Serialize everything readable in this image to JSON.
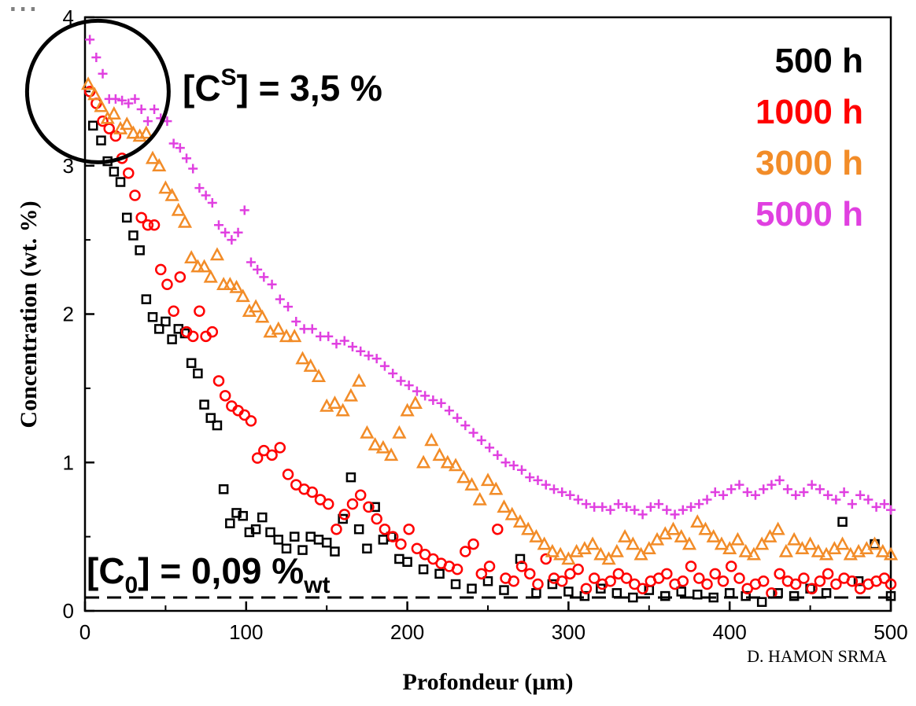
{
  "top_title": "...",
  "credit": "D. HAMON SRMA",
  "annotations": {
    "cs_label": "[C",
    "cs_sup": "S",
    "cs_rest": "] = 3,5 %",
    "c0_label": "[C",
    "c0_sub": "0",
    "c0_mid": "] = 0,09 %",
    "c0_sub2": "wt"
  },
  "colors": {
    "s500": "#000000",
    "s1000": "#ff0000",
    "s3000": "#f28c28",
    "s5000": "#e040e0"
  },
  "chart_data": {
    "type": "scatter",
    "xlabel": "Profondeur (µm)",
    "ylabel": "Concentration (wt. %)",
    "xlim": [
      0,
      500
    ],
    "ylim": [
      0,
      4
    ],
    "xticks": [
      0,
      100,
      200,
      300,
      400,
      500
    ],
    "yticks": [
      0,
      1,
      2,
      3,
      4
    ],
    "grid": false,
    "legend_position": "top-right",
    "reference_line": {
      "y": 0.09,
      "style": "dashed"
    },
    "circle_annotation": {
      "x": 8,
      "y": 3.5
    },
    "series": [
      {
        "name": "500 h",
        "marker": "square",
        "color": "#000000",
        "x": [
          5,
          10,
          14,
          18,
          22,
          26,
          30,
          34,
          38,
          42,
          46,
          50,
          54,
          58,
          62,
          66,
          70,
          74,
          78,
          82,
          86,
          90,
          94,
          98,
          102,
          106,
          110,
          115,
          120,
          125,
          130,
          135,
          140,
          145,
          150,
          155,
          160,
          165,
          170,
          175,
          180,
          185,
          190,
          195,
          200,
          210,
          220,
          230,
          240,
          250,
          260,
          270,
          280,
          290,
          300,
          310,
          320,
          330,
          340,
          350,
          360,
          370,
          380,
          390,
          400,
          410,
          420,
          430,
          440,
          450,
          460,
          470,
          480,
          490,
          500
        ],
        "y": [
          3.27,
          3.17,
          3.03,
          2.96,
          2.89,
          2.65,
          2.53,
          2.43,
          2.1,
          1.98,
          1.9,
          1.95,
          1.83,
          1.9,
          1.87,
          1.67,
          1.6,
          1.39,
          1.3,
          1.25,
          0.82,
          0.59,
          0.66,
          0.64,
          0.53,
          0.55,
          0.63,
          0.53,
          0.48,
          0.42,
          0.5,
          0.41,
          0.5,
          0.48,
          0.46,
          0.4,
          0.62,
          0.9,
          0.55,
          0.42,
          0.7,
          0.48,
          0.5,
          0.35,
          0.33,
          0.28,
          0.25,
          0.18,
          0.15,
          0.2,
          0.14,
          0.35,
          0.12,
          0.18,
          0.13,
          0.1,
          0.15,
          0.12,
          0.09,
          0.14,
          0.1,
          0.13,
          0.11,
          0.09,
          0.12,
          0.1,
          0.06,
          0.12,
          0.1,
          0.15,
          0.12,
          0.6,
          0.2,
          0.45,
          0.1
        ]
      },
      {
        "name": "1000 h",
        "marker": "circle",
        "color": "#ff0000",
        "x": [
          3,
          7,
          11,
          15,
          19,
          23,
          27,
          31,
          35,
          39,
          43,
          47,
          51,
          55,
          59,
          63,
          67,
          71,
          75,
          79,
          83,
          87,
          91,
          95,
          99,
          103,
          107,
          111,
          116,
          121,
          126,
          131,
          136,
          141,
          146,
          151,
          156,
          161,
          166,
          171,
          176,
          181,
          186,
          191,
          196,
          201,
          206,
          211,
          216,
          221,
          226,
          231,
          236,
          241,
          246,
          251,
          256,
          261,
          266,
          271,
          276,
          281,
          286,
          291,
          296,
          301,
          306,
          311,
          316,
          321,
          326,
          331,
          336,
          341,
          346,
          351,
          356,
          361,
          366,
          371,
          376,
          381,
          386,
          391,
          396,
          401,
          406,
          411,
          416,
          421,
          426,
          431,
          436,
          441,
          446,
          451,
          456,
          461,
          466,
          471,
          476,
          481,
          486,
          491,
          496,
          500
        ],
        "y": [
          3.5,
          3.42,
          3.3,
          3.25,
          3.2,
          3.05,
          2.95,
          2.8,
          2.65,
          2.6,
          2.6,
          2.3,
          2.2,
          2.02,
          2.25,
          1.88,
          1.85,
          2.02,
          1.85,
          1.88,
          1.55,
          1.45,
          1.38,
          1.35,
          1.32,
          1.28,
          1.03,
          1.08,
          1.05,
          1.1,
          0.92,
          0.85,
          0.82,
          0.8,
          0.75,
          0.72,
          0.55,
          0.65,
          0.72,
          0.78,
          0.7,
          0.62,
          0.55,
          0.5,
          0.45,
          0.55,
          0.42,
          0.38,
          0.35,
          0.32,
          0.3,
          0.28,
          0.4,
          0.45,
          0.25,
          0.3,
          0.55,
          0.22,
          0.2,
          0.3,
          0.25,
          0.18,
          0.35,
          0.22,
          0.2,
          0.25,
          0.28,
          0.15,
          0.22,
          0.18,
          0.2,
          0.25,
          0.22,
          0.18,
          0.15,
          0.2,
          0.22,
          0.25,
          0.18,
          0.2,
          0.3,
          0.22,
          0.18,
          0.25,
          0.2,
          0.3,
          0.22,
          0.15,
          0.18,
          0.2,
          0.12,
          0.25,
          0.2,
          0.18,
          0.22,
          0.15,
          0.2,
          0.25,
          0.18,
          0.22,
          0.2,
          0.15,
          0.18,
          0.2,
          0.22,
          0.18
        ]
      },
      {
        "name": "3000 h",
        "marker": "triangle",
        "color": "#f28c28",
        "x": [
          2,
          6,
          10,
          14,
          18,
          22,
          26,
          30,
          34,
          38,
          42,
          46,
          50,
          54,
          58,
          62,
          66,
          70,
          74,
          78,
          82,
          86,
          90,
          94,
          98,
          102,
          106,
          110,
          115,
          120,
          125,
          130,
          135,
          140,
          145,
          150,
          155,
          160,
          165,
          170,
          175,
          180,
          185,
          190,
          195,
          200,
          205,
          210,
          215,
          220,
          225,
          230,
          235,
          240,
          245,
          250,
          255,
          260,
          265,
          270,
          275,
          280,
          285,
          290,
          295,
          300,
          305,
          310,
          315,
          320,
          325,
          330,
          335,
          340,
          345,
          350,
          355,
          360,
          365,
          370,
          375,
          380,
          385,
          390,
          395,
          400,
          405,
          410,
          415,
          420,
          425,
          430,
          435,
          440,
          445,
          450,
          455,
          460,
          465,
          470,
          475,
          480,
          485,
          490,
          495,
          500
        ],
        "y": [
          3.55,
          3.48,
          3.4,
          3.32,
          3.35,
          3.25,
          3.28,
          3.22,
          3.2,
          3.22,
          3.05,
          3.0,
          2.85,
          2.8,
          2.7,
          2.62,
          2.38,
          2.32,
          2.32,
          2.25,
          2.4,
          2.2,
          2.2,
          2.18,
          2.12,
          2.02,
          2.05,
          1.98,
          1.88,
          1.9,
          1.85,
          1.85,
          1.7,
          1.65,
          1.58,
          1.38,
          1.4,
          1.35,
          1.45,
          1.55,
          1.2,
          1.12,
          1.1,
          1.05,
          1.2,
          1.35,
          1.4,
          1.0,
          1.15,
          1.05,
          1.0,
          0.98,
          0.9,
          0.85,
          0.75,
          0.88,
          0.82,
          0.7,
          0.65,
          0.6,
          0.55,
          0.5,
          0.45,
          0.4,
          0.38,
          0.35,
          0.4,
          0.42,
          0.45,
          0.38,
          0.35,
          0.4,
          0.5,
          0.45,
          0.38,
          0.42,
          0.48,
          0.52,
          0.55,
          0.5,
          0.45,
          0.6,
          0.55,
          0.5,
          0.45,
          0.42,
          0.48,
          0.4,
          0.38,
          0.45,
          0.5,
          0.55,
          0.4,
          0.48,
          0.42,
          0.45,
          0.4,
          0.38,
          0.42,
          0.45,
          0.38,
          0.4,
          0.42,
          0.45,
          0.4,
          0.38
        ]
      },
      {
        "name": "5000 h",
        "marker": "plus",
        "color": "#e040e0",
        "x": [
          3,
          7,
          11,
          15,
          19,
          23,
          27,
          31,
          35,
          39,
          43,
          47,
          51,
          55,
          59,
          63,
          67,
          71,
          75,
          79,
          83,
          87,
          91,
          95,
          99,
          103,
          107,
          111,
          116,
          121,
          126,
          131,
          136,
          141,
          146,
          151,
          156,
          161,
          166,
          171,
          176,
          181,
          186,
          191,
          196,
          201,
          206,
          211,
          216,
          221,
          226,
          231,
          236,
          241,
          246,
          251,
          256,
          261,
          266,
          271,
          276,
          281,
          286,
          291,
          296,
          301,
          306,
          311,
          316,
          321,
          326,
          331,
          336,
          341,
          346,
          351,
          356,
          361,
          366,
          371,
          376,
          381,
          386,
          391,
          396,
          401,
          406,
          411,
          416,
          421,
          426,
          431,
          436,
          441,
          446,
          451,
          456,
          461,
          466,
          471,
          476,
          481,
          486,
          491,
          496,
          500
        ],
        "y": [
          3.85,
          3.73,
          3.62,
          3.45,
          3.45,
          3.44,
          3.42,
          3.45,
          3.38,
          3.3,
          3.38,
          3.32,
          3.3,
          3.15,
          3.12,
          3.05,
          2.98,
          2.85,
          2.8,
          2.75,
          2.6,
          2.55,
          2.5,
          2.55,
          2.7,
          2.35,
          2.3,
          2.25,
          2.2,
          2.1,
          2.05,
          1.95,
          1.9,
          1.9,
          1.85,
          1.85,
          1.8,
          1.82,
          1.78,
          1.75,
          1.72,
          1.7,
          1.65,
          1.6,
          1.55,
          1.52,
          1.48,
          1.45,
          1.42,
          1.4,
          1.35,
          1.3,
          1.25,
          1.2,
          1.15,
          1.1,
          1.05,
          1.0,
          0.98,
          0.95,
          0.9,
          0.88,
          0.85,
          0.82,
          0.8,
          0.78,
          0.75,
          0.72,
          0.7,
          0.7,
          0.68,
          0.72,
          0.7,
          0.68,
          0.65,
          0.7,
          0.72,
          0.68,
          0.65,
          0.68,
          0.7,
          0.72,
          0.75,
          0.8,
          0.78,
          0.82,
          0.85,
          0.8,
          0.78,
          0.82,
          0.85,
          0.88,
          0.82,
          0.78,
          0.8,
          0.85,
          0.82,
          0.78,
          0.75,
          0.8,
          0.72,
          0.78,
          0.75,
          0.7,
          0.72,
          0.68
        ]
      }
    ]
  }
}
